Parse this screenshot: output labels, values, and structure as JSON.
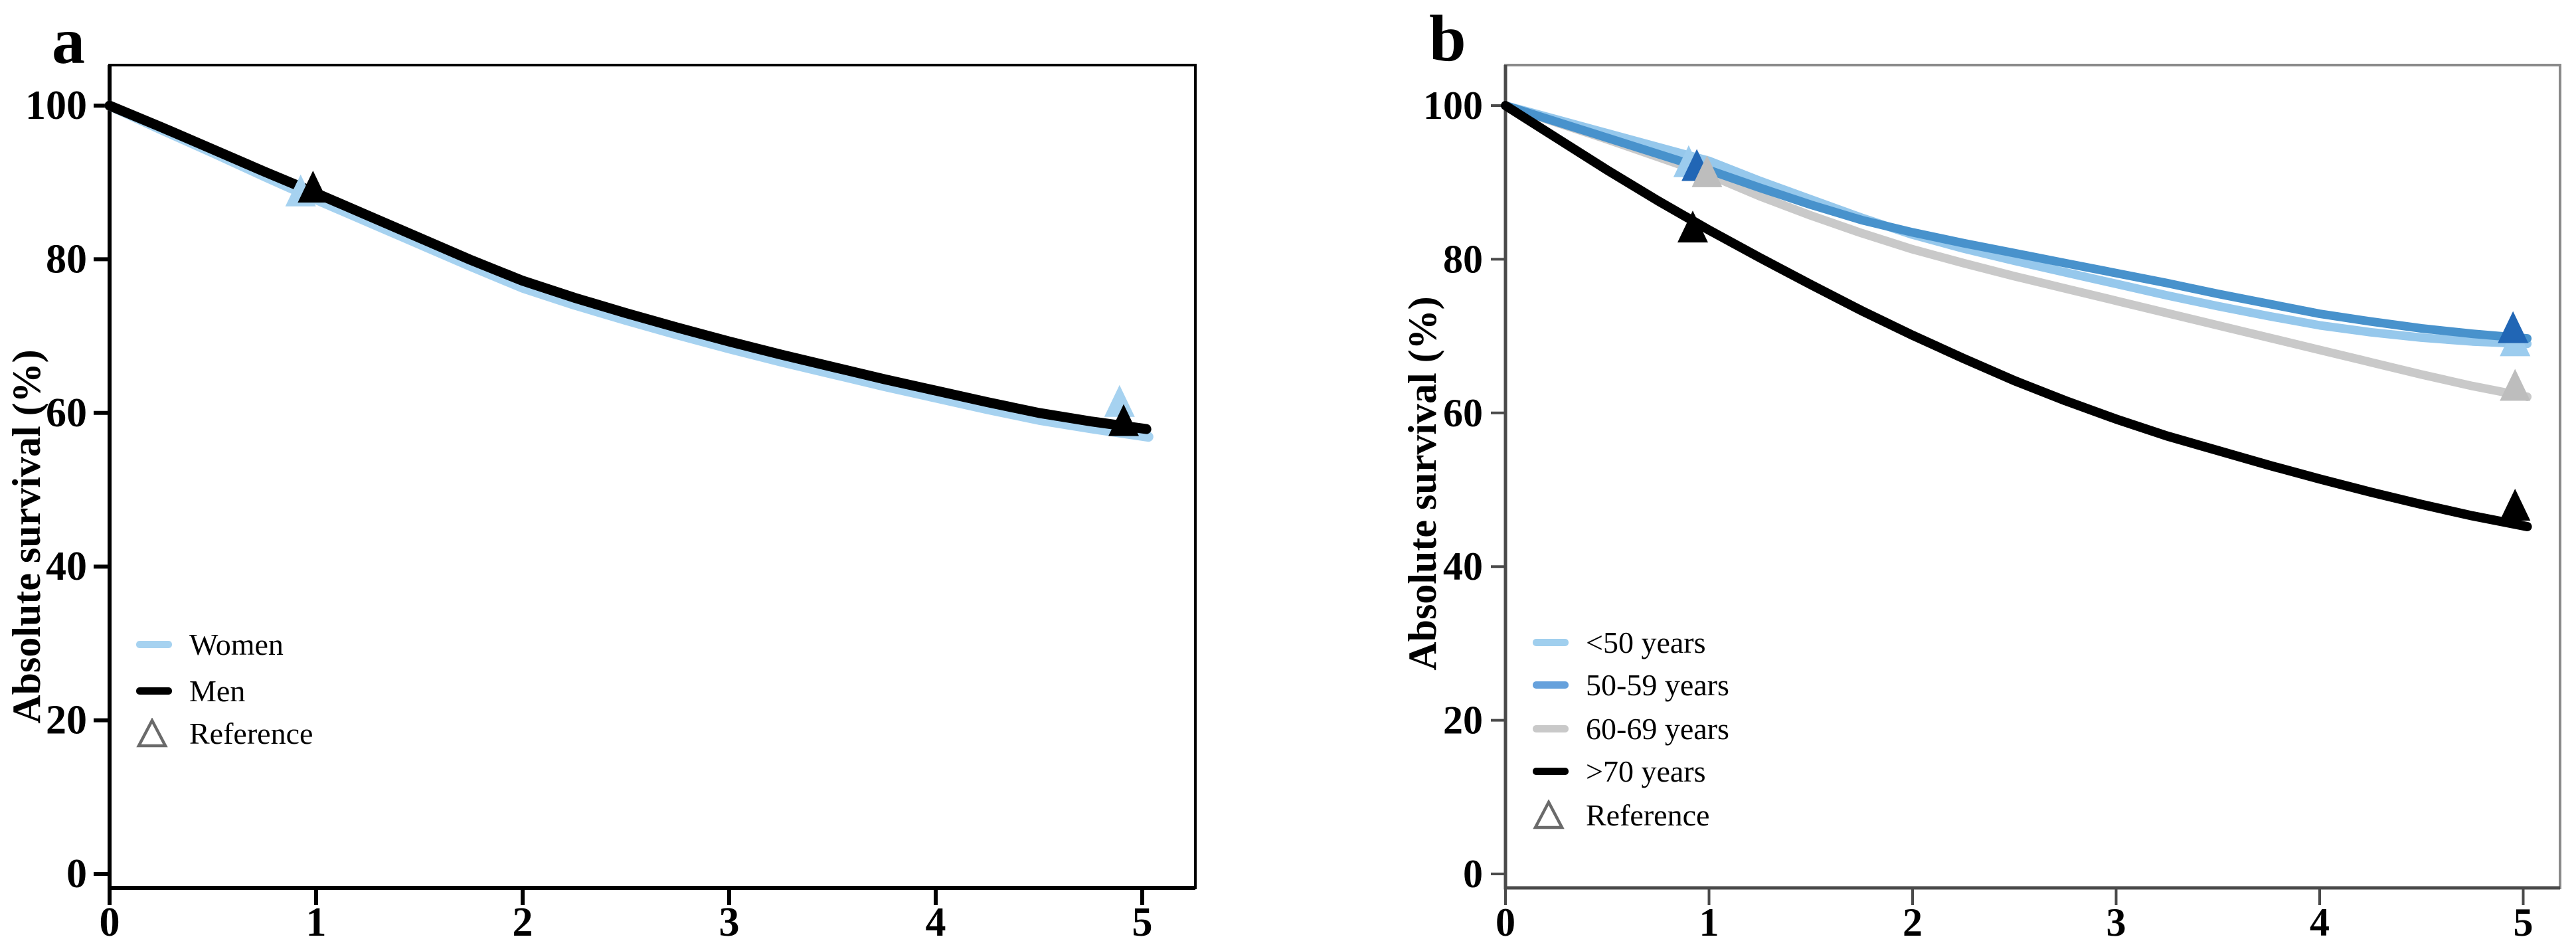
{
  "figure": {
    "background": "#ffffff",
    "panel_count": 2
  },
  "chart_data": [
    {
      "type": "line",
      "panel_label": "a",
      "title": "",
      "xlabel": "",
      "ylabel": "Absolute survival (%)",
      "xlim": [
        0,
        5.26
      ],
      "ylim": [
        0,
        105
      ],
      "x_ticks": [
        0,
        1,
        2,
        3,
        4,
        5
      ],
      "y_ticks": [
        0,
        20,
        40,
        60,
        80,
        100
      ],
      "grid": false,
      "legend_position": "inside-lower-left",
      "frame_color": "#000000",
      "series": [
        {
          "name": "Women",
          "color": "#a6d2f0",
          "width": 15,
          "points": [
            [
              0,
              100
            ],
            [
              0.25,
              96.9
            ],
            [
              0.5,
              93.9
            ],
            [
              0.75,
              90.8
            ],
            [
              1,
              87.8
            ],
            [
              1.25,
              84.9
            ],
            [
              1.5,
              82.0
            ],
            [
              1.75,
              79.1
            ],
            [
              2,
              76.3
            ],
            [
              2.25,
              74.1
            ],
            [
              2.5,
              72.1
            ],
            [
              2.75,
              70.2
            ],
            [
              3,
              68.4
            ],
            [
              3.25,
              66.7
            ],
            [
              3.5,
              65.1
            ],
            [
              3.75,
              63.5
            ],
            [
              4,
              62.0
            ],
            [
              4.25,
              60.5
            ],
            [
              4.5,
              59.1
            ],
            [
              4.75,
              58.0
            ],
            [
              5.03,
              56.9
            ]
          ]
        },
        {
          "name": "Men",
          "color": "#000000",
          "width": 15,
          "points": [
            [
              0,
              100
            ],
            [
              0.25,
              97.2
            ],
            [
              0.5,
              94.3
            ],
            [
              0.75,
              91.4
            ],
            [
              1,
              88.6
            ],
            [
              1.25,
              85.7
            ],
            [
              1.5,
              82.8
            ],
            [
              1.75,
              79.9
            ],
            [
              2,
              77.2
            ],
            [
              2.25,
              75.0
            ],
            [
              2.5,
              73.0
            ],
            [
              2.75,
              71.1
            ],
            [
              3,
              69.3
            ],
            [
              3.25,
              67.6
            ],
            [
              3.5,
              66.0
            ],
            [
              3.75,
              64.4
            ],
            [
              4,
              62.9
            ],
            [
              4.25,
              61.4
            ],
            [
              4.5,
              60.0
            ],
            [
              4.75,
              58.9
            ],
            [
              5.02,
              57.9
            ]
          ]
        }
      ],
      "markers": [
        {
          "name": "reference-women-year1",
          "color": "#a6d2f0",
          "x": 0.925,
          "y": 88.7
        },
        {
          "name": "reference-men-year1",
          "color": "#000000",
          "x": 0.985,
          "y": 89.2
        },
        {
          "name": "reference-women-year5",
          "color": "#a6d2f0",
          "x": 4.89,
          "y": 61.3
        },
        {
          "name": "reference-men-year5",
          "color": "#000000",
          "x": 4.91,
          "y": 58.8
        }
      ],
      "legend": [
        {
          "label": "Women",
          "swatch": "line",
          "color": "#a6d2f0"
        },
        {
          "label": "Men",
          "swatch": "line",
          "color": "#000000"
        },
        {
          "label": "Reference",
          "swatch": "triangle-outline",
          "color": "#6a6a6a"
        }
      ]
    },
    {
      "type": "line",
      "panel_label": "b",
      "title": "",
      "xlabel": "",
      "ylabel": "Absolute survival (%)",
      "xlim": [
        0,
        5.18
      ],
      "ylim": [
        0,
        105
      ],
      "x_ticks": [
        0,
        1,
        2,
        3,
        4,
        5
      ],
      "y_ticks": [
        0,
        20,
        40,
        60,
        80,
        100
      ],
      "grid": false,
      "legend_position": "inside-lower-left",
      "frame_color": "#8a8a8a",
      "series": [
        {
          "name": "<50 years",
          "color": "#96c8ec",
          "width": 13,
          "points": [
            [
              0,
              100
            ],
            [
              0.25,
              98.2
            ],
            [
              0.5,
              96.4
            ],
            [
              0.75,
              94.6
            ],
            [
              1,
              92.8
            ],
            [
              1.25,
              90.2
            ],
            [
              1.5,
              87.8
            ],
            [
              1.75,
              85.4
            ],
            [
              2,
              83.2
            ],
            [
              2.25,
              81.4
            ],
            [
              2.5,
              79.8
            ],
            [
              2.75,
              78.3
            ],
            [
              3,
              76.8
            ],
            [
              3.25,
              75.3
            ],
            [
              3.5,
              73.9
            ],
            [
              3.75,
              72.6
            ],
            [
              4,
              71.4
            ],
            [
              4.25,
              70.5
            ],
            [
              4.5,
              69.8
            ],
            [
              4.75,
              69.3
            ],
            [
              5.02,
              69.0
            ]
          ]
        },
        {
          "name": "60-69 years",
          "color": "#c9c9c9",
          "width": 13,
          "points": [
            [
              0,
              100
            ],
            [
              0.25,
              97.8
            ],
            [
              0.5,
              95.6
            ],
            [
              0.75,
              93.3
            ],
            [
              1,
              91.0
            ],
            [
              1.25,
              88.2
            ],
            [
              1.5,
              85.7
            ],
            [
              1.75,
              83.4
            ],
            [
              2,
              81.3
            ],
            [
              2.25,
              79.5
            ],
            [
              2.5,
              77.8
            ],
            [
              2.75,
              76.2
            ],
            [
              3,
              74.6
            ],
            [
              3.25,
              73.0
            ],
            [
              3.5,
              71.4
            ],
            [
              3.75,
              69.8
            ],
            [
              4,
              68.2
            ],
            [
              4.25,
              66.6
            ],
            [
              4.5,
              65.0
            ],
            [
              4.75,
              63.5
            ],
            [
              5.02,
              62.1
            ]
          ]
        },
        {
          "name": "50-59 years",
          "color": "#4892cc",
          "width": 13,
          "points": [
            [
              0,
              100
            ],
            [
              0.25,
              97.9
            ],
            [
              0.5,
              95.8
            ],
            [
              0.75,
              93.7
            ],
            [
              1,
              91.6
            ],
            [
              1.25,
              89.3
            ],
            [
              1.5,
              87.1
            ],
            [
              1.75,
              85.1
            ],
            [
              2,
              83.5
            ],
            [
              2.25,
              82.1
            ],
            [
              2.5,
              80.8
            ],
            [
              2.75,
              79.5
            ],
            [
              3,
              78.2
            ],
            [
              3.25,
              76.9
            ],
            [
              3.5,
              75.5
            ],
            [
              3.75,
              74.2
            ],
            [
              4,
              72.9
            ],
            [
              4.25,
              71.9
            ],
            [
              4.5,
              71.0
            ],
            [
              4.75,
              70.3
            ],
            [
              5.02,
              69.7
            ]
          ]
        },
        {
          "name": ">70 years",
          "color": "#000000",
          "width": 14,
          "points": [
            [
              0,
              100
            ],
            [
              0.25,
              95.8
            ],
            [
              0.5,
              91.6
            ],
            [
              0.75,
              87.6
            ],
            [
              1,
              83.8
            ],
            [
              1.25,
              80.2
            ],
            [
              1.5,
              76.7
            ],
            [
              1.75,
              73.3
            ],
            [
              2,
              70.1
            ],
            [
              2.25,
              67.1
            ],
            [
              2.5,
              64.2
            ],
            [
              2.75,
              61.6
            ],
            [
              3,
              59.2
            ],
            [
              3.25,
              57.0
            ],
            [
              3.5,
              55.1
            ],
            [
              3.75,
              53.2
            ],
            [
              4,
              51.4
            ],
            [
              4.25,
              49.7
            ],
            [
              4.5,
              48.1
            ],
            [
              4.75,
              46.6
            ],
            [
              5.02,
              45.2
            ]
          ]
        }
      ],
      "markers": [
        {
          "name": "reference-under50-year1",
          "color": "#9cccee",
          "x": 0.9,
          "y": 92.5
        },
        {
          "name": "reference-50-59-year1",
          "color": "#2166b5",
          "x": 0.94,
          "y": 92.0
        },
        {
          "name": "reference-60-69-year1",
          "color": "#bdbdbd",
          "x": 0.99,
          "y": 91.2
        },
        {
          "name": "reference-over70-year1",
          "color": "#000000",
          "x": 0.92,
          "y": 84.0
        },
        {
          "name": "reference-under50-year5",
          "color": "#9cccee",
          "x": 4.96,
          "y": 69.2
        },
        {
          "name": "reference-50-59-year5",
          "color": "#2166b5",
          "x": 4.95,
          "y": 70.9
        },
        {
          "name": "reference-60-69-year5",
          "color": "#bdbdbd",
          "x": 4.96,
          "y": 63.4
        },
        {
          "name": "reference-over70-year5",
          "color": "#000000",
          "x": 4.96,
          "y": 47.8
        }
      ],
      "legend": [
        {
          "label": "<50 years",
          "swatch": "line",
          "color": "#a0cfee"
        },
        {
          "label": "50-59 years",
          "swatch": "line",
          "color": "#66a1dc"
        },
        {
          "label": "60-69 years",
          "swatch": "line",
          "color": "#c9c9c9"
        },
        {
          "label": ">70 years",
          "swatch": "line",
          "color": "#000000"
        },
        {
          "label": "Reference",
          "swatch": "triangle-outline",
          "color": "#6a6a6a"
        }
      ]
    }
  ]
}
